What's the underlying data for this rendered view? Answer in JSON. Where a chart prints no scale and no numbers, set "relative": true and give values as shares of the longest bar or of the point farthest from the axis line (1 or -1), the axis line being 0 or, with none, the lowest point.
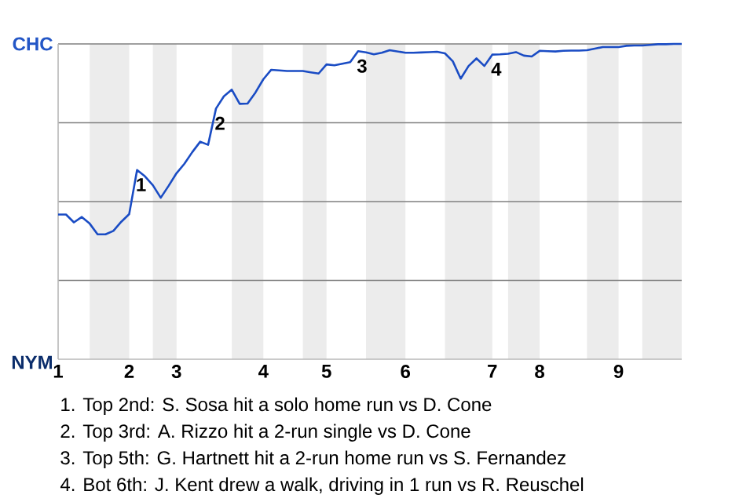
{
  "chart_data": {
    "type": "line",
    "relative": true,
    "categories": [
      "1",
      null,
      null,
      null,
      null,
      null,
      null,
      null,
      null,
      "2",
      null,
      null,
      null,
      null,
      null,
      "3",
      null,
      null,
      null,
      null,
      null,
      null,
      null,
      null,
      null,
      null,
      "4",
      null,
      null,
      null,
      null,
      null,
      null,
      null,
      "5",
      null,
      null,
      null,
      null,
      null,
      null,
      null,
      null,
      null,
      "6",
      null,
      null,
      null,
      null,
      null,
      null,
      null,
      null,
      null,
      null,
      "7",
      null,
      null,
      null,
      null,
      null,
      "8",
      null,
      null,
      null,
      null,
      null,
      null,
      null,
      null,
      null,
      "9",
      null,
      null,
      null,
      null,
      null,
      null,
      null,
      null
    ],
    "series": [
      {
        "color": "#1a4cc4",
        "values": [
          0.459,
          0.459,
          0.434,
          0.451,
          0.43,
          0.396,
          0.396,
          0.407,
          0.436,
          0.46,
          0.6,
          0.58,
          0.552,
          0.512,
          0.55,
          0.59,
          0.62,
          0.657,
          0.69,
          0.68,
          0.795,
          0.834,
          0.855,
          0.81,
          0.811,
          0.846,
          0.888,
          0.918,
          0.916,
          0.914,
          0.914,
          0.914,
          0.91,
          0.906,
          0.935,
          0.932,
          0.937,
          0.942,
          0.977,
          0.973,
          0.967,
          0.972,
          0.98,
          0.976,
          0.972,
          0.972,
          0.973,
          0.974,
          0.975,
          0.97,
          0.945,
          0.89,
          0.93,
          0.954,
          0.93,
          0.966,
          0.967,
          0.969,
          0.974,
          0.963,
          0.96,
          0.978,
          0.977,
          0.976,
          0.978,
          0.979,
          0.979,
          0.98,
          0.985,
          0.99,
          0.99,
          0.99,
          0.994,
          0.995,
          0.995,
          0.997,
          0.999,
          0.999,
          1.0,
          1.0
        ]
      }
    ],
    "grid": "y",
    "annotations": [
      "CHC",
      "NYM",
      {
        "text": "1",
        "y": 0.6
      },
      {
        "text": "2",
        "y": 0.795
      },
      {
        "text": "3",
        "y": 0.977
      },
      {
        "text": "4",
        "y": 0.966
      },
      "1. Top 2nd: S. Sosa hit a solo home run vs D. Cone",
      "2. Top 3rd: A. Rizzo hit a 2-run single vs D. Cone",
      "3. Top 5th: G. Hartnett hit a 2-run home run vs S. Fernandez",
      "4. Bot 6th: J. Kent drew a walk, driving in 1 run vs R. Reuschel"
    ]
  }
}
